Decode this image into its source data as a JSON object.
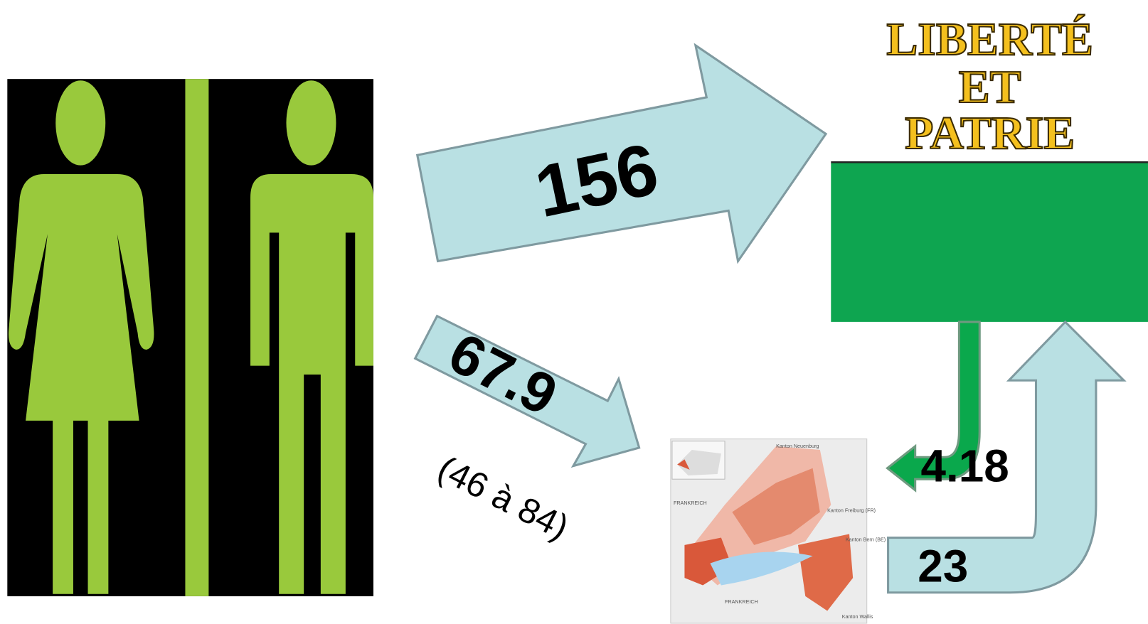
{
  "title": {
    "lines": [
      "LIBERTÉ",
      "ET",
      "PATRIE"
    ]
  },
  "flows": [
    {
      "label": "156"
    },
    {
      "label": "67.9",
      "range": "(46 à 84)"
    },
    {
      "label": "4.18"
    },
    {
      "label": "23"
    }
  ],
  "map": {
    "labels": [
      "Kanton Neuenburg",
      "FRANKREICH",
      "Kanton Freiburg (FR)",
      "Kanton Bern (BE)",
      "FRANKREICH",
      "Kanton Wallis"
    ]
  }
}
